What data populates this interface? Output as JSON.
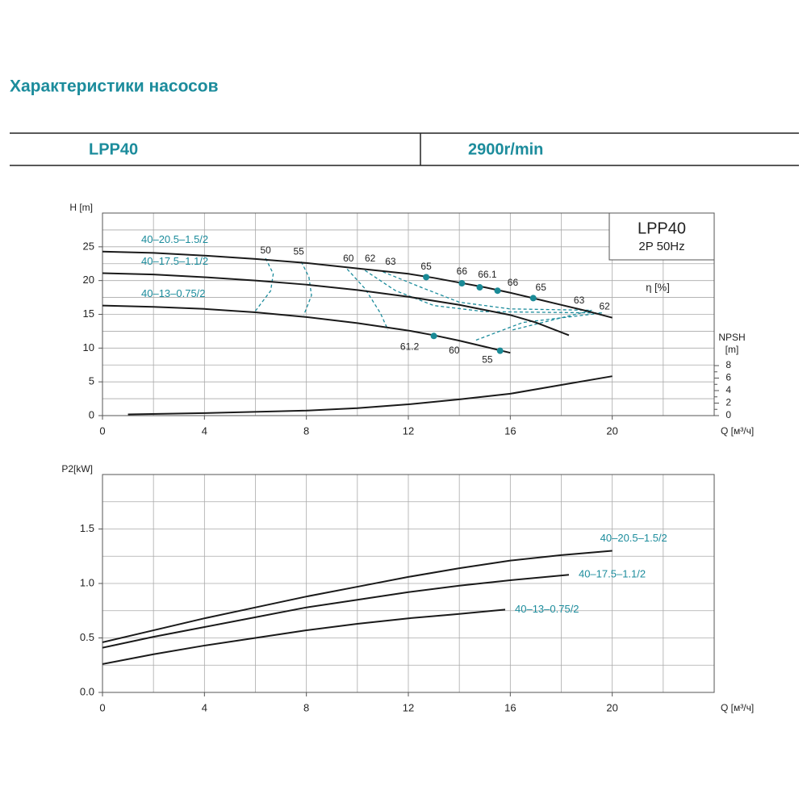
{
  "header": {
    "title": "Характеристики насосов"
  },
  "table": {
    "cells": [
      "LPP40",
      "2900r/min"
    ]
  },
  "chart_data": [
    {
      "type": "line",
      "ylabel": "H [m]",
      "xlabel": "Q [м³/ч]",
      "xlim": [
        0,
        24
      ],
      "xticks": [
        0,
        4,
        8,
        12,
        16,
        20
      ],
      "xgrid": [
        0,
        2,
        4,
        6,
        8,
        10,
        12,
        14,
        16,
        18,
        20,
        22,
        24
      ],
      "ylim": [
        0,
        30
      ],
      "yticks": [
        0,
        5,
        10,
        15,
        20,
        25
      ],
      "ygrid": [
        0,
        2.5,
        5,
        7.5,
        10,
        12.5,
        15,
        17.5,
        20,
        22.5,
        25,
        27.5,
        30
      ],
      "y2label": [
        "NPSH",
        "[m]"
      ],
      "y2lim": [
        0,
        32.4
      ],
      "y2ticks": [
        0,
        2,
        4,
        6,
        8
      ],
      "y2minor": [
        1,
        3,
        5,
        7
      ],
      "label_color": "#1c8c9c",
      "box": {
        "title": "LPP40",
        "subtitle": "2P 50Hz"
      },
      "efficiency_label": "η [%]",
      "series": [
        {
          "name": "40–20.5–1.5/2",
          "color": "#1a1a1a",
          "x": [
            0,
            2,
            4,
            6,
            8,
            10,
            12,
            13,
            14,
            15,
            16,
            17,
            18,
            19,
            20
          ],
          "values": [
            24.3,
            24.1,
            23.7,
            23.2,
            22.6,
            21.8,
            21.0,
            20.4,
            19.7,
            19.0,
            18.2,
            17.3,
            16.4,
            15.5,
            14.5
          ]
        },
        {
          "name": "40–17.5–1.1/2",
          "color": "#1a1a1a",
          "x": [
            0,
            2,
            4,
            6,
            8,
            10,
            12,
            14,
            16,
            17,
            18.3
          ],
          "values": [
            21.1,
            20.9,
            20.5,
            20.0,
            19.4,
            18.6,
            17.6,
            16.4,
            14.9,
            13.8,
            11.9
          ]
        },
        {
          "name": "40–13–0.75/2",
          "color": "#1a1a1a",
          "x": [
            0,
            2,
            4,
            6,
            8,
            10,
            12,
            13,
            14,
            15,
            16
          ],
          "values": [
            16.3,
            16.1,
            15.8,
            15.3,
            14.6,
            13.7,
            12.6,
            11.9,
            11.1,
            10.2,
            9.3
          ]
        },
        {
          "color": "#1a1a1a",
          "axis": "y2",
          "x": [
            1,
            4,
            8,
            10,
            12,
            14,
            16,
            18,
            20
          ],
          "values": [
            0.2,
            0.4,
            0.8,
            1.2,
            1.8,
            2.6,
            3.5,
            4.9,
            6.3
          ]
        }
      ],
      "efficiency_contours": [
        {
          "x": [
            6.4,
            6.7,
            6.6,
            6.0
          ],
          "values": [
            23.3,
            21.0,
            18.5,
            15.5
          ]
        },
        {
          "x": [
            7.8,
            8.1,
            8.2,
            7.9
          ],
          "values": [
            22.8,
            20.5,
            17.8,
            14.9
          ]
        },
        {
          "x": [
            9.6,
            10.3,
            10.9,
            11.2
          ],
          "values": [
            21.7,
            18.8,
            15.2,
            12.7
          ]
        },
        {
          "x": [
            10.3,
            11.5,
            13.0,
            15.0,
            19.6,
            16.5,
            14.6
          ],
          "values": [
            21.5,
            18.5,
            16.3,
            15.4,
            15.2,
            13.8,
            11.1
          ]
        },
        {
          "x": [
            11.0,
            12.5,
            14.0,
            16.0,
            19.2,
            17.8,
            16.0
          ],
          "values": [
            21.3,
            19.0,
            16.8,
            15.8,
            15.6,
            14.3,
            12.6
          ]
        }
      ],
      "contour_color": "#1c8c9c",
      "efficiency_points": {
        "color": "#1a8a96",
        "x": [
          12.7,
          14.1,
          14.8,
          15.5,
          16.9,
          13,
          15.6
        ],
        "values": [
          20.5,
          19.6,
          19.0,
          18.5,
          17.4,
          11.8,
          9.6
        ]
      },
      "efficiency_labels": [
        {
          "text": "50",
          "x": 6.4,
          "y": 24.4
        },
        {
          "text": "55",
          "x": 7.7,
          "y": 24.2
        },
        {
          "text": "60",
          "x": 9.65,
          "y": 23.2
        },
        {
          "text": "62",
          "x": 10.5,
          "y": 23.2
        },
        {
          "text": "63",
          "x": 11.3,
          "y": 22.7
        },
        {
          "text": "65",
          "x": 12.7,
          "y": 22.0
        },
        {
          "text": "66",
          "x": 14.1,
          "y": 21.3
        },
        {
          "text": "66.1",
          "x": 15.1,
          "y": 20.8
        },
        {
          "text": "66",
          "x": 16.1,
          "y": 19.6
        },
        {
          "text": "65",
          "x": 17.2,
          "y": 18.9
        },
        {
          "text": "63",
          "x": 18.7,
          "y": 17.0
        },
        {
          "text": "62",
          "x": 19.7,
          "y": 16.1
        },
        {
          "text": "61.2",
          "x": 12.05,
          "y": 10.1
        },
        {
          "text": "60",
          "x": 13.8,
          "y": 9.6
        },
        {
          "text": "55",
          "x": 15.1,
          "y": 8.2
        }
      ]
    },
    {
      "type": "line",
      "ylabel": "P2[kW]",
      "xlabel": "Q [м³/ч]",
      "xlim": [
        0,
        24
      ],
      "xticks": [
        0,
        4,
        8,
        12,
        16,
        20
      ],
      "xgrid": [
        0,
        2,
        4,
        6,
        8,
        10,
        12,
        14,
        16,
        18,
        20,
        22,
        24
      ],
      "ylim": [
        0,
        2
      ],
      "yticks": [
        {
          "value": 0,
          "label": "0.0"
        },
        0.5,
        {
          "value": 1,
          "label": "1.0"
        },
        1.5
      ],
      "ygrid": [
        0,
        0.25,
        0.5,
        0.75,
        1,
        1.25,
        1.5,
        1.75,
        2
      ],
      "label_color": "#1c8c9c",
      "series": [
        {
          "name": "40–20.5–1.5/2",
          "color": "#1a1a1a",
          "x": [
            0,
            2,
            4,
            6,
            8,
            10,
            12,
            14,
            16,
            18,
            20
          ],
          "values": [
            0.46,
            0.57,
            0.68,
            0.78,
            0.88,
            0.97,
            1.06,
            1.14,
            1.21,
            1.26,
            1.3
          ]
        },
        {
          "name": "40–17.5–1.1/2",
          "color": "#1a1a1a",
          "x": [
            0,
            2,
            4,
            6,
            8,
            10,
            12,
            14,
            16,
            18.3
          ],
          "values": [
            0.41,
            0.51,
            0.6,
            0.69,
            0.78,
            0.85,
            0.92,
            0.98,
            1.03,
            1.08
          ]
        },
        {
          "name": "40–13–0.75/2",
          "color": "#1a1a1a",
          "x": [
            0,
            2,
            4,
            6,
            8,
            10,
            12,
            14,
            15.8
          ],
          "values": [
            0.26,
            0.35,
            0.43,
            0.5,
            0.57,
            0.63,
            0.68,
            0.72,
            0.76
          ]
        }
      ]
    }
  ]
}
